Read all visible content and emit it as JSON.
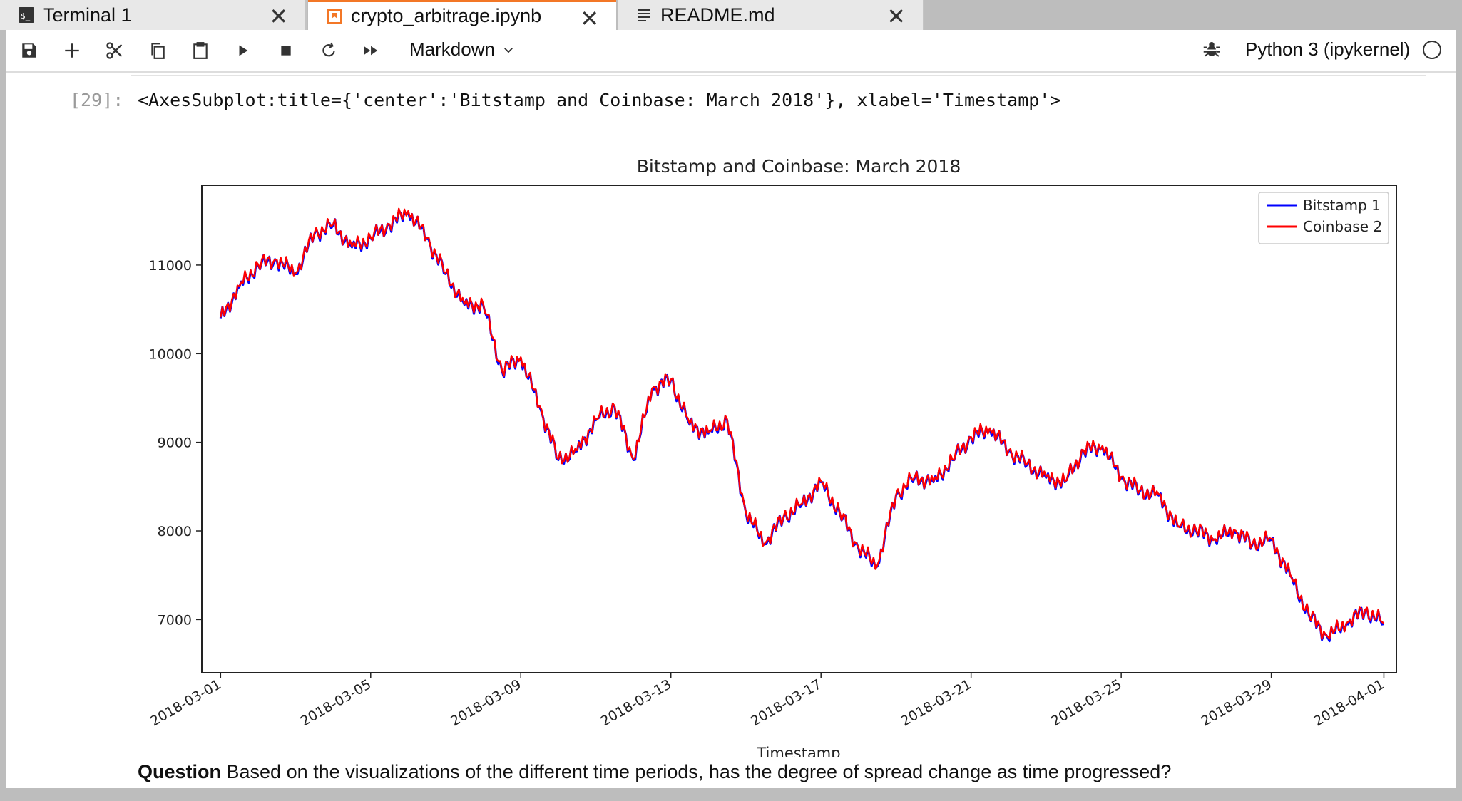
{
  "tabs": [
    {
      "label": "Terminal 1",
      "icon": "terminal-icon",
      "active": false
    },
    {
      "label": "crypto_arbitrage.ipynb",
      "icon": "notebook-icon",
      "active": true
    },
    {
      "label": "README.md",
      "icon": "markdown-file-icon",
      "active": false
    }
  ],
  "toolbar": {
    "buttons": [
      "save-icon",
      "add-cell-icon",
      "cut-icon",
      "copy-icon",
      "paste-icon",
      "run-icon",
      "stop-icon",
      "restart-icon",
      "run-all-icon"
    ],
    "cell_type": "Markdown",
    "kernel": "Python 3 (ipykernel)",
    "debugger_icon": "bug-icon"
  },
  "output": {
    "prompt": "[29]:",
    "text": "<AxesSubplot:title={'center':'Bitstamp and Coinbase: March 2018'}, xlabel='Timestamp'>"
  },
  "chart_data": {
    "type": "line",
    "title": "Bitstamp and Coinbase: March 2018",
    "xlabel": "Timestamp",
    "ylabel": "",
    "ylim": [
      6400,
      11900
    ],
    "xlim": [
      "2018-02-28T12:00",
      "2018-04-01T08:00"
    ],
    "x_ticks": [
      "2018-03-01",
      "2018-03-05",
      "2018-03-09",
      "2018-03-13",
      "2018-03-17",
      "2018-03-21",
      "2018-03-25",
      "2018-03-29",
      "2018-04-01"
    ],
    "y_ticks": [
      7000,
      8000,
      9000,
      10000,
      11000
    ],
    "legend": {
      "position": "top-right"
    },
    "grid": false,
    "x": [
      "2018-03-01",
      "2018-03-01T12:00",
      "2018-03-02",
      "2018-03-02T12:00",
      "2018-03-03",
      "2018-03-03T12:00",
      "2018-03-04",
      "2018-03-04T12:00",
      "2018-03-05",
      "2018-03-05T12:00",
      "2018-03-06",
      "2018-03-06T12:00",
      "2018-03-07",
      "2018-03-07T12:00",
      "2018-03-08",
      "2018-03-08T12:00",
      "2018-03-09",
      "2018-03-09T12:00",
      "2018-03-10",
      "2018-03-10T12:00",
      "2018-03-11",
      "2018-03-11T12:00",
      "2018-03-12",
      "2018-03-12T12:00",
      "2018-03-13",
      "2018-03-13T12:00",
      "2018-03-14",
      "2018-03-14T12:00",
      "2018-03-15",
      "2018-03-15T12:00",
      "2018-03-16",
      "2018-03-16T12:00",
      "2018-03-17",
      "2018-03-17T12:00",
      "2018-03-18",
      "2018-03-18T12:00",
      "2018-03-19",
      "2018-03-19T12:00",
      "2018-03-20",
      "2018-03-20T12:00",
      "2018-03-21",
      "2018-03-21T12:00",
      "2018-03-22",
      "2018-03-22T12:00",
      "2018-03-23",
      "2018-03-23T12:00",
      "2018-03-24",
      "2018-03-24T12:00",
      "2018-03-25",
      "2018-03-25T12:00",
      "2018-03-26",
      "2018-03-26T12:00",
      "2018-03-27",
      "2018-03-27T12:00",
      "2018-03-28",
      "2018-03-28T12:00",
      "2018-03-29",
      "2018-03-29T12:00",
      "2018-03-30",
      "2018-03-30T12:00",
      "2018-03-31",
      "2018-03-31T12:00",
      "2018-04-01"
    ],
    "series": [
      {
        "name": "Bitstamp 1",
        "color": "#0000ff",
        "values": [
          10400,
          10750,
          11000,
          11050,
          10900,
          11350,
          11450,
          11200,
          11300,
          11450,
          11600,
          11300,
          10900,
          10550,
          10550,
          9800,
          9950,
          9400,
          8800,
          8900,
          9250,
          9400,
          8800,
          9600,
          9700,
          9200,
          9100,
          9250,
          8200,
          7850,
          8150,
          8300,
          8550,
          8200,
          7800,
          7600,
          8400,
          8600,
          8550,
          8800,
          9050,
          9150,
          8900,
          8750,
          8600,
          8550,
          8900,
          8950,
          8600,
          8450,
          8400,
          8050,
          8000,
          7900,
          8000,
          7850,
          7900,
          7500,
          7050,
          6800,
          6950,
          7100,
          6950
        ]
      },
      {
        "name": "Coinbase 2",
        "color": "#ff0000",
        "values": [
          10410,
          10760,
          11010,
          11060,
          10910,
          11360,
          11460,
          11210,
          11310,
          11460,
          11610,
          11310,
          10910,
          10560,
          10560,
          9810,
          9960,
          9410,
          8810,
          8910,
          9260,
          9410,
          8810,
          9610,
          9710,
          9210,
          9110,
          9260,
          8210,
          7860,
          8160,
          8310,
          8560,
          8210,
          7810,
          7610,
          8410,
          8610,
          8560,
          8810,
          9060,
          9160,
          8910,
          8760,
          8610,
          8560,
          8910,
          8960,
          8610,
          8460,
          8410,
          8060,
          8010,
          7910,
          8010,
          7860,
          7910,
          7510,
          7060,
          6810,
          6960,
          7110,
          6960
        ]
      }
    ]
  },
  "markdown": {
    "question_label": "Question",
    "question_text": " Based on the visualizations of the different time periods, has the degree of spread change as time progressed?"
  }
}
